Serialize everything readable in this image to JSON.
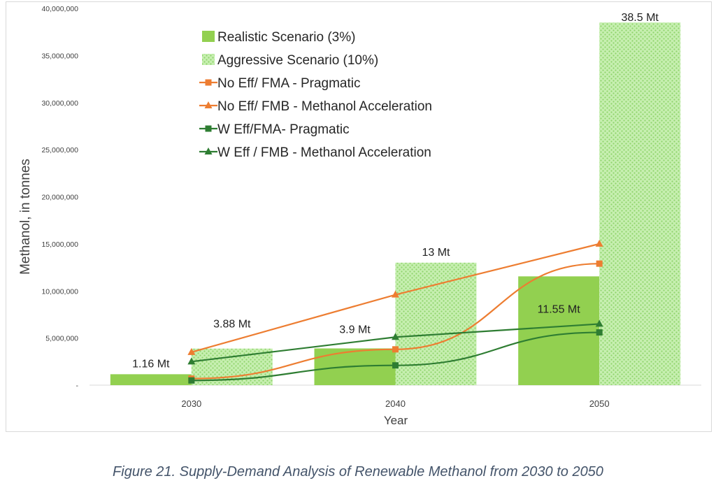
{
  "chart_data": {
    "type": "bar",
    "title": "",
    "xlabel": "Year",
    "ylabel": "Methanol, in tonnes",
    "categories": [
      "2030",
      "2040",
      "2050"
    ],
    "ylim": [
      0,
      40000000
    ],
    "y_ticks": [
      0,
      5000000,
      10000000,
      15000000,
      20000000,
      25000000,
      30000000,
      35000000,
      40000000
    ],
    "y_tick_labels": [
      "-",
      "5,000,000",
      "10,000,000",
      "15,000,000",
      "20,000,000",
      "25,000,000",
      "30,000,000",
      "35,000,000",
      "40,000,000"
    ],
    "grid": false,
    "legend_position": "top-left",
    "bar_series": [
      {
        "name": "Realistic Scenario (3%)",
        "color": "#92d050",
        "pattern": "solid",
        "values": [
          1160000,
          3900000,
          11550000
        ],
        "data_labels": [
          "1.16 Mt",
          "3.9 Mt",
          "11.55 Mt"
        ]
      },
      {
        "name": "Aggressive Scenario (10%)",
        "color": "#a9e08a",
        "pattern": "hatched",
        "values": [
          3880000,
          13000000,
          38500000
        ],
        "data_labels": [
          "3.88 Mt",
          "13 Mt",
          "38.5 Mt"
        ]
      }
    ],
    "line_series": [
      {
        "name": "No Eff/ FMA - Pragmatic",
        "color": "#ed7d31",
        "marker": "square",
        "values": [
          700000,
          3800000,
          12900000
        ]
      },
      {
        "name": "No Eff/ FMB - Methanol Acceleration",
        "color": "#ed7d31",
        "marker": "triangle",
        "values": [
          3500000,
          9600000,
          15000000
        ]
      },
      {
        "name": "W Eff/FMA- Pragmatic",
        "color": "#2e7d32",
        "marker": "square",
        "values": [
          500000,
          2100000,
          5600000
        ]
      },
      {
        "name": "W Eff / FMB - Methanol Acceleration",
        "color": "#2e7d32",
        "marker": "triangle",
        "values": [
          2500000,
          5100000,
          6500000
        ]
      }
    ]
  },
  "caption": "Figure 21. Supply-Demand Analysis of Renewable Methanol from 2030 to 2050"
}
